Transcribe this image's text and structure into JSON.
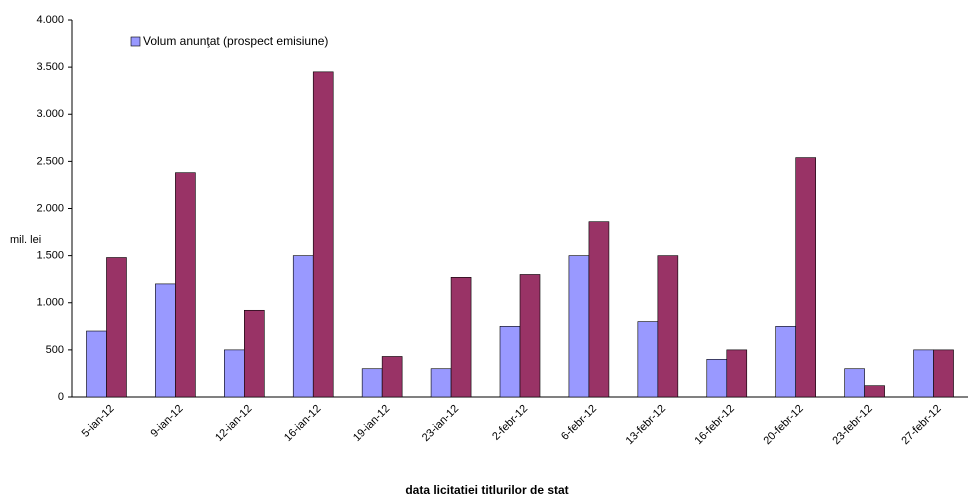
{
  "chart_data": {
    "type": "bar",
    "x_label": "data  licitatiei  titlurilor de stat",
    "y_label": "mil. lei",
    "categories": [
      "5-ian-12",
      "9-ian-12",
      "12-ian-12",
      "16-ian-12",
      "19-ian-12",
      "23-ian-12",
      "2-febr-12",
      "6-febr-12",
      "13-febr-12",
      "16-febr-12",
      "20-febr-12",
      "23-febr-12",
      "27-febr-12"
    ],
    "series": [
      {
        "name": "Volum anunţat (prospect emisiune)",
        "color": "#9999ff",
        "values": [
          700,
          1200,
          500,
          1500,
          300,
          300,
          750,
          1500,
          800,
          400,
          750,
          300,
          500
        ]
      },
      {
        "color": "#993366",
        "values": [
          1480,
          2380,
          920,
          3450,
          430,
          1270,
          1300,
          1860,
          1500,
          500,
          2540,
          120,
          500
        ]
      }
    ],
    "ylim": [
      0,
      4000
    ],
    "yticks": [
      0,
      500,
      {
        "value": 1000,
        "label": "1.000"
      },
      {
        "value": 1500,
        "label": "1.500"
      },
      {
        "value": 2000,
        "label": "2.000"
      },
      {
        "value": 2500,
        "label": "2.500"
      },
      {
        "value": 3000,
        "label": "3.000"
      },
      {
        "value": 3500,
        "label": "3.500"
      },
      {
        "value": 4000,
        "label": "4.000"
      }
    ],
    "grid": false,
    "legend": "top-left"
  }
}
